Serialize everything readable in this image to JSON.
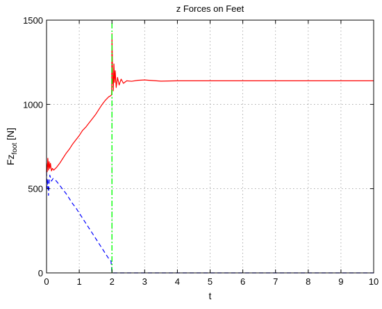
{
  "chart_data": {
    "type": "line",
    "title": "z Forces on Feet",
    "xlabel": "t",
    "ylabel_main": "Fz",
    "ylabel_sub": "foot",
    "ylabel_unit": " [N]",
    "xlim": [
      0,
      10
    ],
    "ylim": [
      0,
      1500
    ],
    "xticks": [
      0,
      1,
      2,
      3,
      4,
      5,
      6,
      7,
      8,
      9,
      10
    ],
    "yticks": [
      0,
      500,
      1000,
      1500
    ],
    "grid": true,
    "series": [
      {
        "color": "#ff0000",
        "style": "solid",
        "points": [
          [
            0,
            650
          ],
          [
            0.02,
            600
          ],
          [
            0.04,
            680
          ],
          [
            0.06,
            610
          ],
          [
            0.08,
            660
          ],
          [
            0.1,
            620
          ],
          [
            0.12,
            650
          ],
          [
            0.15,
            605
          ],
          [
            0.18,
            620
          ],
          [
            0.22,
            610
          ],
          [
            0.3,
            625
          ],
          [
            0.4,
            650
          ],
          [
            0.5,
            680
          ],
          [
            0.6,
            710
          ],
          [
            0.7,
            735
          ],
          [
            0.8,
            765
          ],
          [
            0.9,
            790
          ],
          [
            1.0,
            815
          ],
          [
            1.1,
            845
          ],
          [
            1.2,
            865
          ],
          [
            1.3,
            890
          ],
          [
            1.4,
            915
          ],
          [
            1.5,
            940
          ],
          [
            1.6,
            970
          ],
          [
            1.7,
            1000
          ],
          [
            1.8,
            1025
          ],
          [
            1.9,
            1045
          ],
          [
            1.95,
            1050
          ],
          [
            1.98,
            1055
          ],
          [
            1.99,
            1060
          ],
          [
            2.0,
            1420
          ],
          [
            2.02,
            1180
          ],
          [
            2.04,
            1080
          ],
          [
            2.06,
            1240
          ],
          [
            2.08,
            1130
          ],
          [
            2.1,
            1200
          ],
          [
            2.13,
            1100
          ],
          [
            2.17,
            1160
          ],
          [
            2.22,
            1115
          ],
          [
            2.28,
            1150
          ],
          [
            2.35,
            1125
          ],
          [
            2.45,
            1140
          ],
          [
            2.6,
            1137
          ],
          [
            2.8,
            1143
          ],
          [
            3.0,
            1145
          ],
          [
            3.2,
            1142
          ],
          [
            3.5,
            1138
          ],
          [
            4.0,
            1140
          ],
          [
            5,
            1140
          ],
          [
            6,
            1140
          ],
          [
            7,
            1140
          ],
          [
            8,
            1140
          ],
          [
            9,
            1140
          ],
          [
            10,
            1140
          ]
        ]
      },
      {
        "color": "#0000ff",
        "style": "dashed",
        "points": [
          [
            0,
            600
          ],
          [
            0.02,
            500
          ],
          [
            0.04,
            560
          ],
          [
            0.06,
            460
          ],
          [
            0.08,
            540
          ],
          [
            0.1,
            580
          ],
          [
            0.15,
            545
          ],
          [
            0.2,
            560
          ],
          [
            0.3,
            545
          ],
          [
            0.4,
            520
          ],
          [
            0.5,
            495
          ],
          [
            0.6,
            470
          ],
          [
            0.7,
            440
          ],
          [
            0.8,
            410
          ],
          [
            0.9,
            385
          ],
          [
            1.0,
            355
          ],
          [
            1.1,
            325
          ],
          [
            1.2,
            295
          ],
          [
            1.3,
            265
          ],
          [
            1.4,
            235
          ],
          [
            1.5,
            205
          ],
          [
            1.6,
            175
          ],
          [
            1.7,
            145
          ],
          [
            1.8,
            115
          ],
          [
            1.9,
            85
          ],
          [
            1.97,
            70
          ],
          [
            2.0,
            0
          ],
          [
            3,
            0
          ],
          [
            4,
            0
          ],
          [
            5,
            0
          ],
          [
            6,
            0
          ],
          [
            7,
            0
          ],
          [
            8,
            0
          ],
          [
            9,
            0
          ],
          [
            10,
            0
          ]
        ]
      },
      {
        "color": "#00ff00",
        "style": "dashdot",
        "points": [
          [
            2,
            0
          ],
          [
            2,
            1500
          ]
        ]
      }
    ]
  }
}
